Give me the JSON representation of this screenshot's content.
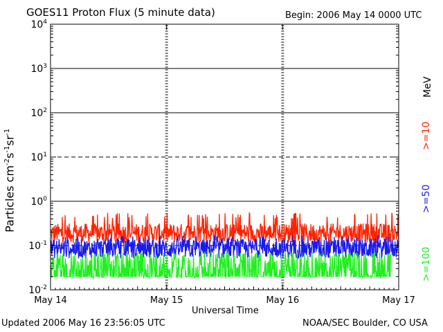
{
  "chart_data": {
    "type": "line",
    "title": "GOES11 Proton Flux (5 minute data)",
    "begin_label": "Begin: 2006 May 14 0000 UTC",
    "xlabel": "Universal Time",
    "ylabel_html": "Particles cm<sup>-2</sup>s<sup>-1</sup>sr<sup>-1</sup>",
    "yscale": "log",
    "ylim": [
      0.01,
      10000
    ],
    "y_ticks": [
      {
        "value": 0.01,
        "base": "10",
        "exp": "-2"
      },
      {
        "value": 0.1,
        "base": "10",
        "exp": "-1"
      },
      {
        "value": 1,
        "base": "10",
        "exp": "0"
      },
      {
        "value": 10,
        "base": "10",
        "exp": "1"
      },
      {
        "value": 100,
        "base": "10",
        "exp": "2"
      },
      {
        "value": 1000,
        "base": "10",
        "exp": "3"
      },
      {
        "value": 10000,
        "base": "10",
        "exp": "4"
      }
    ],
    "x_ticks": [
      "May 14",
      "May 15",
      "May 16",
      "May 17"
    ],
    "xlim_days": [
      0,
      3
    ],
    "grid": {
      "solid_y": [
        1,
        100,
        1000
      ],
      "dashed_y": [
        0.1,
        10
      ]
    },
    "series": [
      {
        "name": ">=10",
        "color": "#ff2200",
        "base": 0.19,
        "spread": 0.22,
        "spike": 0.55,
        "end_day": 3.0
      },
      {
        "name": ">=50",
        "color": "#1a1aee",
        "base": 0.085,
        "spread": 0.22,
        "spike": 0.17,
        "end_day": 3.0
      },
      {
        "name": ">=100",
        "color": "#22ee22",
        "base": 0.036,
        "spread": 0.3,
        "spike": 0.07,
        "end_day": 2.93
      }
    ],
    "legend_unit": "MeV",
    "footer_left": "Updated 2006 May 16 23:56:05 UTC",
    "footer_right": "NOAA/SEC Boulder, CO USA"
  }
}
